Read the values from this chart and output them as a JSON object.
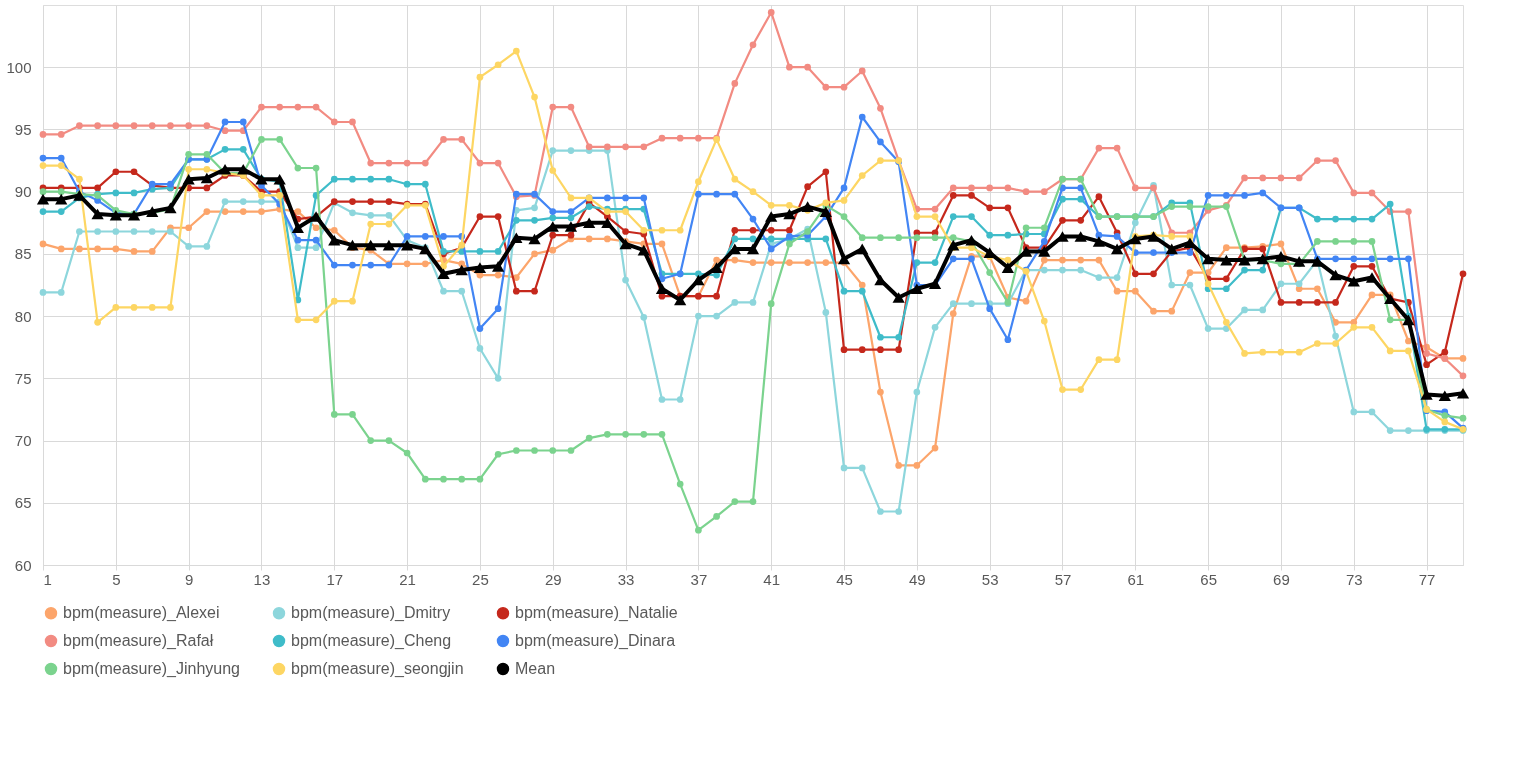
{
  "chart_data": {
    "type": "line",
    "xlim": [
      1,
      79
    ],
    "xticks": [
      1,
      5,
      9,
      13,
      17,
      21,
      25,
      29,
      33,
      37,
      41,
      45,
      49,
      53,
      57,
      61,
      65,
      69,
      73,
      77
    ],
    "ylim": [
      60,
      105
    ],
    "yticks": [
      60,
      65,
      70,
      75,
      80,
      85,
      90,
      95,
      100
    ],
    "grid": true,
    "legend": "bottom",
    "marker": "circle",
    "line_style": "solid",
    "x": [
      1,
      2,
      3,
      4,
      5,
      6,
      7,
      8,
      9,
      10,
      11,
      12,
      13,
      14,
      15,
      16,
      17,
      18,
      19,
      20,
      21,
      22,
      23,
      24,
      25,
      26,
      27,
      28,
      29,
      30,
      31,
      32,
      33,
      34,
      35,
      36,
      37,
      38,
      39,
      40,
      41,
      42,
      43,
      44,
      45,
      46,
      47,
      48,
      49,
      50,
      51,
      52,
      53,
      54,
      55,
      56,
      57,
      58,
      59,
      60,
      61,
      62,
      63,
      64,
      65,
      66,
      67,
      68,
      69,
      70,
      71,
      72,
      73,
      74,
      75,
      76,
      77,
      78,
      79
    ],
    "series": [
      {
        "name": "bpm(measure)_Alexei",
        "color": "#fca56b",
        "values": [
          85.8,
          85.4,
          85.4,
          85.4,
          85.4,
          85.2,
          85.2,
          87.1,
          87.1,
          88.4,
          88.4,
          88.4,
          88.4,
          88.6,
          88.4,
          87.1,
          86.9,
          85.5,
          85.3,
          84.2,
          84.2,
          84.2,
          84.5,
          84.2,
          83.3,
          83.3,
          83.1,
          85.0,
          85.3,
          86.2,
          86.2,
          86.2,
          86.0,
          85.8,
          85.8,
          81.6,
          81.6,
          84.5,
          84.5,
          84.3,
          84.3,
          84.3,
          84.3,
          84.3,
          84.3,
          82.5,
          73.9,
          68.0,
          68.0,
          69.4,
          80.2,
          84.8,
          84.8,
          81.5,
          81.2,
          84.5,
          84.5,
          84.5,
          84.5,
          82.0,
          82.0,
          80.4,
          80.4,
          83.5,
          83.5,
          85.5,
          85.5,
          85.6,
          85.8,
          82.2,
          82.2,
          79.5,
          79.5,
          81.7,
          81.7,
          78.0,
          77.5,
          76.6,
          76.6
        ]
      },
      {
        "name": "bpm(measure)_Dmitry",
        "color": "#8dd6dc",
        "values": [
          81.9,
          81.9,
          86.8,
          86.8,
          86.8,
          86.8,
          86.8,
          86.8,
          85.6,
          85.6,
          89.2,
          89.2,
          89.2,
          89.2,
          85.5,
          85.5,
          89.1,
          88.3,
          88.1,
          88.1,
          86.1,
          85.5,
          82.0,
          82.0,
          77.4,
          75.0,
          88.5,
          88.7,
          93.3,
          93.3,
          93.3,
          93.3,
          82.9,
          79.9,
          73.3,
          73.3,
          80.0,
          80.0,
          81.1,
          81.1,
          85.8,
          86.2,
          87.0,
          80.3,
          67.8,
          67.8,
          64.3,
          64.3,
          73.9,
          79.1,
          81.0,
          81.0,
          81.0,
          81.0,
          83.7,
          83.7,
          83.7,
          83.7,
          83.1,
          83.1,
          87.5,
          90.5,
          82.5,
          82.5,
          79.0,
          79.0,
          80.5,
          80.5,
          82.6,
          82.6,
          84.5,
          78.4,
          72.3,
          72.3,
          70.8,
          70.8,
          70.8,
          70.8,
          70.8
        ]
      },
      {
        "name": "bpm(measure)_Natalie",
        "color": "#c5281c",
        "values": [
          90.3,
          90.3,
          90.3,
          90.3,
          91.6,
          91.6,
          90.5,
          90.3,
          90.3,
          90.3,
          91.3,
          91.3,
          90.0,
          90.0,
          87.8,
          88.0,
          89.2,
          89.2,
          89.2,
          89.2,
          89.0,
          89.0,
          85.0,
          85.5,
          88.0,
          88.0,
          82.0,
          82.0,
          86.5,
          86.5,
          89.1,
          88.0,
          86.8,
          86.6,
          81.6,
          81.6,
          81.6,
          81.6,
          86.9,
          86.9,
          86.9,
          86.9,
          90.4,
          91.6,
          77.3,
          77.3,
          77.3,
          77.3,
          86.7,
          86.7,
          89.7,
          89.7,
          88.7,
          88.7,
          85.5,
          85.5,
          87.7,
          87.7,
          89.6,
          86.7,
          83.4,
          83.4,
          85.2,
          85.5,
          83.0,
          83.0,
          85.4,
          85.4,
          81.1,
          81.1,
          81.1,
          81.1,
          84.0,
          84.0,
          81.4,
          81.1,
          76.1,
          77.1,
          83.4
        ]
      },
      {
        "name": "bpm(measure)_Rafał",
        "color": "#f28b82",
        "values": [
          94.6,
          94.6,
          95.3,
          95.3,
          95.3,
          95.3,
          95.3,
          95.3,
          95.3,
          95.3,
          94.9,
          94.9,
          96.8,
          96.8,
          96.8,
          96.8,
          95.6,
          95.6,
          92.3,
          92.3,
          92.3,
          92.3,
          94.2,
          94.2,
          92.3,
          92.3,
          89.6,
          89.7,
          96.8,
          96.8,
          93.6,
          93.6,
          93.6,
          93.6,
          94.3,
          94.3,
          94.3,
          94.3,
          98.7,
          101.8,
          104.4,
          100.0,
          100.0,
          98.4,
          98.4,
          99.7,
          96.7,
          92.5,
          88.6,
          88.6,
          90.3,
          90.3,
          90.3,
          90.3,
          90.0,
          90.0,
          91.0,
          91.0,
          93.5,
          93.5,
          90.3,
          90.3,
          86.7,
          86.7,
          88.5,
          88.9,
          91.1,
          91.1,
          91.1,
          91.1,
          92.5,
          92.5,
          89.9,
          89.9,
          88.4,
          88.4,
          77.0,
          76.6,
          75.2
        ]
      },
      {
        "name": "bpm(measure)_Cheng",
        "color": "#3fbcc9",
        "values": [
          88.4,
          88.4,
          89.5,
          89.8,
          89.9,
          89.9,
          90.2,
          90.3,
          92.6,
          92.6,
          93.4,
          93.4,
          91.0,
          90.8,
          81.3,
          89.7,
          91.0,
          91.0,
          91.0,
          91.0,
          90.6,
          90.6,
          85.2,
          85.2,
          85.2,
          85.2,
          87.7,
          87.7,
          87.9,
          87.9,
          88.8,
          88.6,
          88.6,
          88.6,
          83.4,
          83.4,
          83.4,
          83.3,
          86.2,
          86.2,
          86.2,
          86.2,
          86.2,
          86.2,
          82.0,
          82.0,
          78.3,
          78.3,
          84.3,
          84.3,
          88.0,
          88.0,
          86.5,
          86.5,
          86.6,
          86.6,
          89.4,
          89.4,
          88.0,
          88.0,
          88.0,
          88.0,
          89.1,
          89.1,
          82.2,
          82.2,
          83.7,
          83.7,
          88.7,
          88.7,
          87.8,
          87.8,
          87.8,
          87.8,
          89.0,
          80.0,
          70.9,
          70.9,
          70.9
        ]
      },
      {
        "name": "bpm(measure)_Dinara",
        "color": "#4285f4",
        "values": [
          92.7,
          92.7,
          90.0,
          89.3,
          88.3,
          88.2,
          90.6,
          90.6,
          92.6,
          92.6,
          95.6,
          95.6,
          90.5,
          89.0,
          86.1,
          86.1,
          84.1,
          84.1,
          84.1,
          84.1,
          86.4,
          86.4,
          86.4,
          86.4,
          79.0,
          80.6,
          89.8,
          89.8,
          88.4,
          88.4,
          89.5,
          89.5,
          89.5,
          89.5,
          83.0,
          83.4,
          89.8,
          89.8,
          89.8,
          87.8,
          85.4,
          86.4,
          86.5,
          88.0,
          90.3,
          96.0,
          94.0,
          92.4,
          82.5,
          82.5,
          84.6,
          84.6,
          80.6,
          78.1,
          83.7,
          86.0,
          90.3,
          90.3,
          86.5,
          86.4,
          85.1,
          85.1,
          85.1,
          85.1,
          89.7,
          89.7,
          89.7,
          89.9,
          88.7,
          88.7,
          84.6,
          84.6,
          84.6,
          84.6,
          84.6,
          84.6,
          72.4,
          72.3,
          71.0
        ]
      },
      {
        "name": "bpm(measure)_Jinhyung",
        "color": "#7bd38e",
        "values": [
          90.0,
          90.0,
          89.8,
          89.7,
          88.5,
          88.2,
          88.3,
          88.6,
          93.0,
          93.0,
          91.5,
          91.5,
          94.2,
          94.2,
          91.9,
          91.9,
          72.1,
          72.1,
          70.0,
          70.0,
          69.0,
          66.9,
          66.9,
          66.9,
          66.9,
          68.9,
          69.2,
          69.2,
          69.2,
          69.2,
          70.2,
          70.5,
          70.5,
          70.5,
          70.5,
          66.5,
          62.8,
          63.9,
          65.1,
          65.1,
          81.0,
          85.8,
          86.8,
          88.9,
          88.0,
          86.3,
          86.3,
          86.3,
          86.3,
          86.3,
          86.3,
          86.0,
          83.5,
          81.1,
          87.1,
          87.1,
          91.0,
          91.0,
          88.0,
          88.0,
          88.0,
          88.0,
          88.8,
          88.8,
          88.8,
          88.8,
          84.5,
          84.5,
          84.2,
          84.2,
          86.0,
          86.0,
          86.0,
          86.0,
          79.7,
          79.7,
          72.5,
          72.0,
          71.8
        ]
      },
      {
        "name": "bpm(measure)_seongjin",
        "color": "#fdd663",
        "values": [
          92.1,
          92.1,
          91.0,
          79.5,
          80.7,
          80.7,
          80.7,
          80.7,
          91.8,
          91.8,
          91.5,
          91.3,
          89.7,
          89.7,
          79.7,
          79.7,
          81.2,
          81.2,
          87.4,
          87.4,
          88.9,
          88.9,
          84.0,
          85.7,
          99.2,
          100.2,
          101.3,
          97.6,
          91.7,
          89.5,
          89.5,
          88.4,
          88.4,
          86.9,
          86.9,
          86.9,
          90.8,
          94.2,
          91.0,
          90.0,
          88.9,
          88.9,
          88.5,
          89.1,
          89.3,
          91.3,
          92.5,
          92.5,
          88.0,
          88.0,
          85.5,
          85.5,
          84.8,
          84.5,
          83.6,
          79.6,
          74.1,
          74.1,
          76.5,
          76.5,
          86.4,
          86.5,
          86.4,
          86.4,
          82.6,
          79.5,
          77.0,
          77.1,
          77.1,
          77.1,
          77.8,
          77.8,
          79.1,
          79.1,
          77.2,
          77.2,
          72.5,
          71.5,
          70.9
        ]
      },
      {
        "name": "Mean",
        "color": "#000000",
        "marker": "triangle",
        "values": [
          89.4,
          89.4,
          89.7,
          88.2,
          88.1,
          88.1,
          88.4,
          88.7,
          91.0,
          91.1,
          91.8,
          91.8,
          91.0,
          91.0,
          87.1,
          88.0,
          86.1,
          85.7,
          85.7,
          85.7,
          85.7,
          85.4,
          83.4,
          83.7,
          83.9,
          84.0,
          86.3,
          86.2,
          87.2,
          87.2,
          87.5,
          87.5,
          85.8,
          85.3,
          82.2,
          81.3,
          82.9,
          83.9,
          85.4,
          85.4,
          88.0,
          88.2,
          88.8,
          88.4,
          84.6,
          85.4,
          82.9,
          81.5,
          82.2,
          82.6,
          85.7,
          86.1,
          85.1,
          83.9,
          85.2,
          85.2,
          86.4,
          86.4,
          86.0,
          85.4,
          86.2,
          86.4,
          85.4,
          85.9,
          84.6,
          84.5,
          84.5,
          84.6,
          84.8,
          84.4,
          84.4,
          83.3,
          82.8,
          83.1,
          81.4,
          79.7,
          73.7,
          73.6,
          73.8
        ]
      }
    ]
  }
}
